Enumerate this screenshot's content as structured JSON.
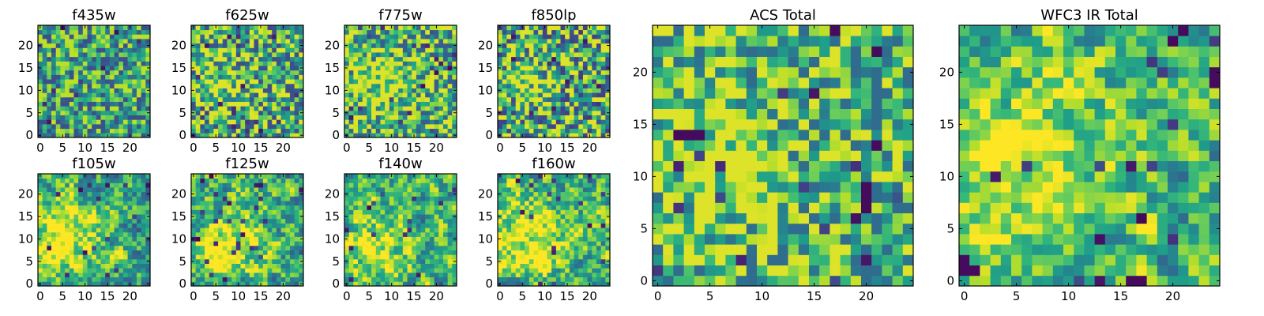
{
  "figure": {
    "aspect": "square panels"
  },
  "colormap": {
    "name": "viridis",
    "stops": [
      "#440154",
      "#482878",
      "#3e4989",
      "#31688e",
      "#26828e",
      "#1f9e89",
      "#35b779",
      "#6ece58",
      "#b5de2b",
      "#fde725"
    ]
  },
  "chart_data": [
    {
      "type": "heatmap",
      "title": "f435w",
      "grid": [
        25,
        25
      ],
      "xlim": [
        0,
        25
      ],
      "ylim": [
        0,
        25
      ],
      "xticks": [
        0,
        5,
        10,
        15,
        20
      ],
      "yticks": [
        0,
        5,
        10,
        15,
        20
      ],
      "seed": 11,
      "value_range": [
        0.25,
        0.9
      ],
      "smooth": 0,
      "blob": null
    },
    {
      "type": "heatmap",
      "title": "f625w",
      "grid": [
        25,
        25
      ],
      "xlim": [
        0,
        25
      ],
      "ylim": [
        0,
        25
      ],
      "xticks": [
        0,
        5,
        10,
        15,
        20
      ],
      "yticks": [
        0,
        5,
        10,
        15,
        20
      ],
      "seed": 23,
      "value_range": [
        0.25,
        0.95
      ],
      "smooth": 0,
      "blob": [
        6,
        10,
        5
      ]
    },
    {
      "type": "heatmap",
      "title": "f775w",
      "grid": [
        25,
        25
      ],
      "xlim": [
        0,
        25
      ],
      "ylim": [
        0,
        25
      ],
      "xticks": [
        0,
        5,
        10,
        15,
        20
      ],
      "yticks": [
        0,
        5,
        10,
        15,
        20
      ],
      "seed": 37,
      "value_range": [
        0.3,
        0.95
      ],
      "smooth": 0,
      "blob": [
        8,
        11,
        6
      ]
    },
    {
      "type": "heatmap",
      "title": "f850lp",
      "grid": [
        25,
        25
      ],
      "xlim": [
        0,
        25
      ],
      "ylim": [
        0,
        25
      ],
      "xticks": [
        0,
        5,
        10,
        15,
        20
      ],
      "yticks": [
        0,
        5,
        10,
        15,
        20
      ],
      "seed": 41,
      "value_range": [
        0.2,
        0.95
      ],
      "smooth": 0,
      "blob": [
        6,
        12,
        5
      ]
    },
    {
      "type": "heatmap",
      "title": "f105w",
      "grid": [
        25,
        25
      ],
      "xlim": [
        0,
        25
      ],
      "ylim": [
        0,
        25
      ],
      "xticks": [
        0,
        5,
        10,
        15,
        20
      ],
      "yticks": [
        0,
        5,
        10,
        15,
        20
      ],
      "seed": 53,
      "value_range": [
        0.25,
        1.0
      ],
      "smooth": 1,
      "blob": [
        5,
        10,
        6
      ]
    },
    {
      "type": "heatmap",
      "title": "f125w",
      "grid": [
        25,
        25
      ],
      "xlim": [
        0,
        25
      ],
      "ylim": [
        0,
        25
      ],
      "xticks": [
        0,
        5,
        10,
        15,
        20
      ],
      "yticks": [
        0,
        5,
        10,
        15,
        20
      ],
      "seed": 67,
      "value_range": [
        0.25,
        1.0
      ],
      "smooth": 1,
      "blob": [
        7,
        9,
        6
      ]
    },
    {
      "type": "heatmap",
      "title": "f140w",
      "grid": [
        25,
        25
      ],
      "xlim": [
        0,
        25
      ],
      "ylim": [
        0,
        25
      ],
      "xticks": [
        0,
        5,
        10,
        15,
        20
      ],
      "yticks": [
        0,
        5,
        10,
        15,
        20
      ],
      "seed": 79,
      "value_range": [
        0.25,
        1.0
      ],
      "smooth": 1,
      "blob": [
        6,
        8,
        6
      ]
    },
    {
      "type": "heatmap",
      "title": "f160w",
      "grid": [
        25,
        25
      ],
      "xlim": [
        0,
        25
      ],
      "ylim": [
        0,
        25
      ],
      "xticks": [
        0,
        5,
        10,
        15,
        20
      ],
      "yticks": [
        0,
        5,
        10,
        15,
        20
      ],
      "seed": 97,
      "value_range": [
        0.25,
        1.0
      ],
      "smooth": 1,
      "blob": [
        5,
        10,
        7
      ]
    },
    {
      "type": "heatmap",
      "title": "ACS Total",
      "grid": [
        25,
        25
      ],
      "xlim": [
        0,
        25
      ],
      "ylim": [
        0,
        25
      ],
      "xticks": [
        0,
        5,
        10,
        15,
        20
      ],
      "yticks": [
        0,
        5,
        10,
        15,
        20
      ],
      "seed": 131,
      "value_range": [
        0.35,
        0.95
      ],
      "smooth": 0,
      "blob": [
        7,
        11,
        5
      ],
      "dark_cells": [
        [
          20,
          9
        ],
        [
          20,
          8
        ],
        [
          20,
          7
        ],
        [
          17,
          24
        ],
        [
          21,
          22
        ],
        [
          21,
          13
        ],
        [
          4,
          14
        ],
        [
          3,
          14
        ]
      ]
    },
    {
      "type": "heatmap",
      "title": "WFC3 IR Total",
      "grid": [
        25,
        25
      ],
      "xlim": [
        0,
        25
      ],
      "ylim": [
        0,
        25
      ],
      "xticks": [
        0,
        5,
        10,
        15,
        20
      ],
      "yticks": [
        0,
        5,
        10,
        15,
        20
      ],
      "seed": 149,
      "value_range": [
        0.3,
        1.0
      ],
      "smooth": 1,
      "blob": [
        4,
        10,
        6
      ],
      "dark_cells": [
        [
          0,
          1
        ],
        [
          0,
          2
        ],
        [
          1,
          1
        ],
        [
          17,
          0
        ],
        [
          16,
          0
        ],
        [
          24,
          19
        ],
        [
          24,
          20
        ],
        [
          21,
          24
        ]
      ]
    }
  ]
}
